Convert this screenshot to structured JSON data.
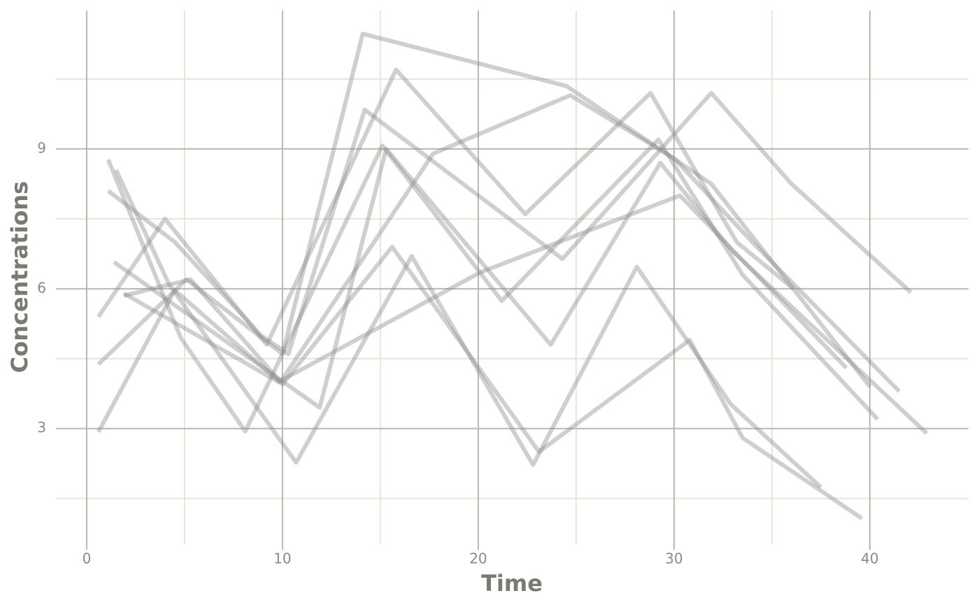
{
  "chart_data": {
    "type": "line",
    "x_label": "Time",
    "y_label": "Concentrations",
    "xlim": [
      -1.57,
      45.04
    ],
    "ylim": [
      0.52,
      11.97
    ],
    "xticks": [
      0,
      10,
      20,
      30,
      40
    ],
    "yticks": [
      3,
      6,
      9
    ],
    "minor_xticks": [
      5,
      15,
      25,
      35
    ],
    "minor_yticks": [
      1.5,
      4.5,
      7.5,
      10.5
    ],
    "grid": true,
    "color": "#8c8c8c",
    "series": [
      {
        "x": [
          1.1,
          4.8,
          8.1,
          15.1,
          21.2,
          29.2,
          33.5,
          40.4
        ],
        "values": [
          8.77,
          4.95,
          2.94,
          9.07,
          5.74,
          9.2,
          6.3,
          3.2
        ]
      },
      {
        "x": [
          1.5,
          4.2,
          10.7,
          16.6,
          22.8,
          28.1,
          32.9,
          37.5
        ],
        "values": [
          8.55,
          6.1,
          2.27,
          6.7,
          2.22,
          6.47,
          3.52,
          1.74
        ]
      },
      {
        "x": [
          1.1,
          4.5,
          8.9,
          10.3,
          14.2,
          24.3,
          31.9,
          36.0,
          42.1
        ],
        "values": [
          8.1,
          7.0,
          5.0,
          4.6,
          9.84,
          6.64,
          10.2,
          8.25,
          5.92
        ]
      },
      {
        "x": [
          0.6,
          4.0,
          9.2,
          15.8,
          22.4,
          28.8,
          33.2,
          36.1
        ],
        "values": [
          5.4,
          7.5,
          4.8,
          10.7,
          7.6,
          10.2,
          7.0,
          6.0
        ]
      },
      {
        "x": [
          0.6,
          5.1,
          10.0,
          14.1,
          24.5,
          31.9,
          40.0
        ],
        "values": [
          4.38,
          6.2,
          4.6,
          11.47,
          10.35,
          8.25,
          3.9
        ]
      },
      {
        "x": [
          0.6,
          4.5,
          10.0,
          15.6,
          23.1,
          30.8,
          33.5,
          39.6
        ],
        "values": [
          2.93,
          5.97,
          3.95,
          6.9,
          2.5,
          4.9,
          2.8,
          1.07
        ]
      },
      {
        "x": [
          1.4,
          11.9,
          15.3,
          17.3,
          23.7,
          29.3,
          33.0,
          42.9
        ],
        "values": [
          6.57,
          3.45,
          9.0,
          8.0,
          4.8,
          8.7,
          6.8,
          2.9
        ]
      },
      {
        "x": [
          1.9,
          5.3,
          9.9,
          17.7,
          24.7,
          30.0,
          34.0,
          41.5
        ],
        "values": [
          5.85,
          6.2,
          4.0,
          8.9,
          10.15,
          8.8,
          7.0,
          3.8
        ]
      },
      {
        "x": [
          1.9,
          9.8,
          20.1,
          30.3,
          38.8
        ],
        "values": [
          5.9,
          4.0,
          6.35,
          8.0,
          4.3
        ]
      }
    ]
  }
}
